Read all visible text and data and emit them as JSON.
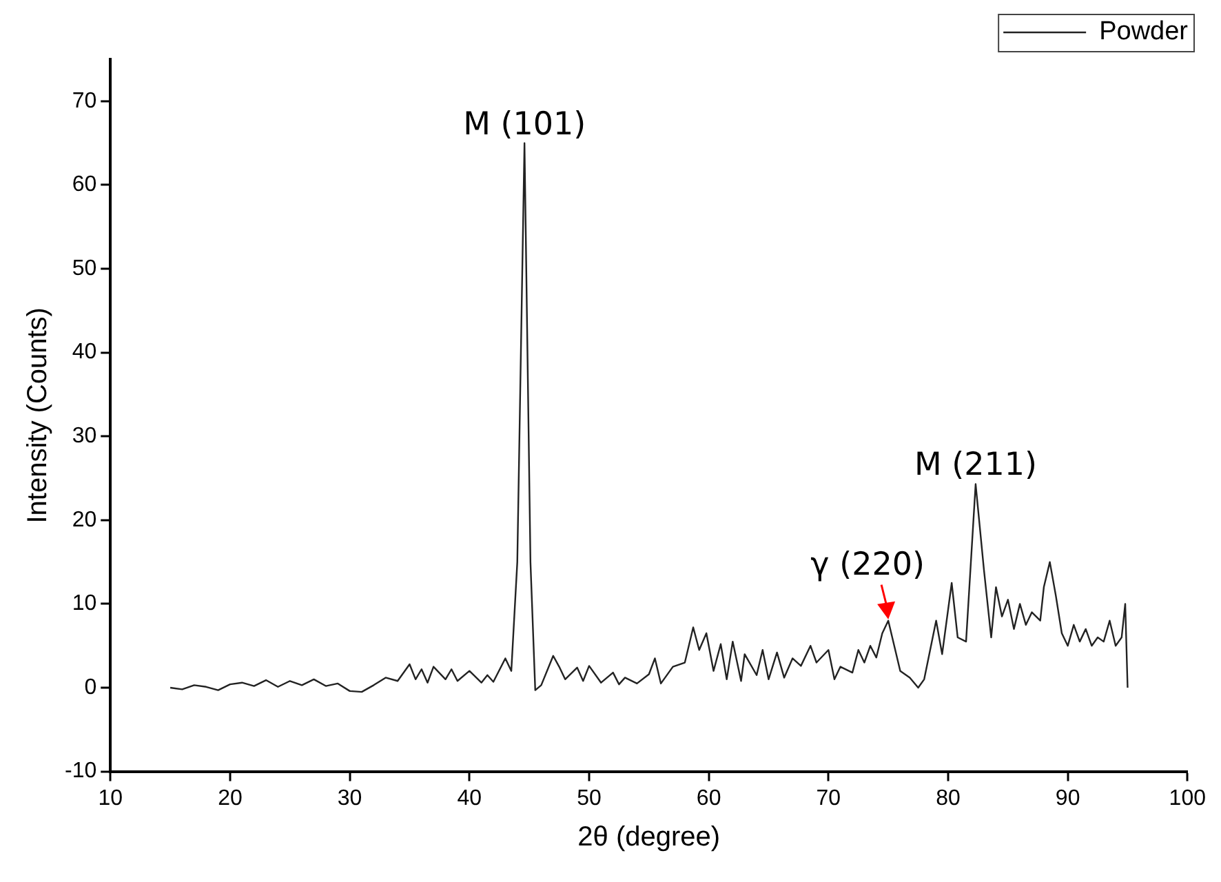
{
  "chart_data": {
    "type": "line",
    "xlabel": "2θ (degree)",
    "ylabel": "Intensity (Counts)",
    "legend": "top right",
    "grid": false,
    "marker": "none",
    "line_style": "solid",
    "xlim": [
      10,
      100
    ],
    "xticks": [
      10,
      20,
      30,
      40,
      50,
      60,
      70,
      80,
      90,
      100
    ],
    "ylim": [
      -10,
      75
    ],
    "yticks": [
      -10,
      0,
      10,
      20,
      30,
      40,
      50,
      60,
      70
    ],
    "series": [
      {
        "name": "Powder",
        "color": "#222222",
        "x": [
          15,
          16,
          17,
          18,
          19,
          20,
          21,
          22,
          23,
          24,
          25,
          26,
          27,
          28,
          29,
          30,
          31,
          32,
          33,
          34,
          35,
          35.5,
          36,
          36.5,
          37,
          38,
          38.5,
          39,
          40,
          41,
          41.5,
          42,
          43,
          43.5,
          44,
          44.6,
          45.1,
          45.5,
          46,
          47,
          47.5,
          48,
          49,
          49.5,
          50,
          51,
          52,
          52.5,
          53,
          54,
          55,
          55.5,
          56,
          57,
          58,
          58.7,
          59.2,
          59.8,
          60.4,
          61,
          61.5,
          62,
          62.7,
          63,
          64,
          64.5,
          65,
          65.7,
          66.3,
          67,
          67.7,
          68.5,
          69,
          70,
          70.5,
          71,
          72,
          72.5,
          73,
          73.5,
          74,
          74.5,
          75,
          75.5,
          76,
          76.8,
          77.5,
          78,
          78.5,
          79,
          79.5,
          80.3,
          80.8,
          81.5,
          82.3,
          83,
          83.6,
          84,
          84.5,
          85,
          85.5,
          86,
          86.5,
          87,
          87.7,
          88,
          88.5,
          89,
          89.5,
          90,
          90.5,
          91,
          91.5,
          92,
          92.5,
          93,
          93.5,
          94,
          94.5,
          94.8,
          95
        ],
        "values": [
          0,
          -0.2,
          0.3,
          0.1,
          -0.3,
          0.4,
          0.6,
          0.2,
          0.9,
          0.1,
          0.8,
          0.3,
          1,
          0.2,
          0.5,
          -0.4,
          -0.5,
          0.3,
          1.2,
          0.8,
          2.8,
          1,
          2.2,
          0.6,
          2.5,
          1,
          2.2,
          0.8,
          2,
          0.6,
          1.5,
          0.7,
          3.5,
          2,
          15,
          65,
          15,
          -0.3,
          0.3,
          3.8,
          2.5,
          1,
          2.4,
          0.8,
          2.6,
          0.6,
          1.8,
          0.4,
          1.2,
          0.5,
          1.6,
          3.5,
          0.5,
          2.5,
          3,
          7.2,
          4.5,
          6.5,
          2,
          5.2,
          1,
          5.5,
          0.8,
          4,
          1.5,
          4.5,
          1,
          4.2,
          1.2,
          3.5,
          2.6,
          5,
          3,
          4.5,
          1,
          2.5,
          1.8,
          4.5,
          3,
          5,
          3.6,
          6.5,
          8,
          5,
          2,
          1.2,
          0,
          1,
          4.5,
          8,
          4,
          12.5,
          6,
          5.5,
          24.3,
          14,
          6,
          12,
          8.5,
          10.5,
          7,
          10,
          7.5,
          9,
          8,
          12,
          15,
          11,
          6.5,
          5,
          7.5,
          5.5,
          7,
          5,
          6,
          5.5,
          8,
          5,
          6,
          10,
          0
        ]
      }
    ],
    "annotations": [
      {
        "text": "M (101)",
        "x": 44.6,
        "y": 65
      },
      {
        "text": "M (211)",
        "x": 82.3,
        "y": 24.3
      },
      {
        "text": "γ (220)",
        "x": 75,
        "y": 8
      }
    ]
  }
}
